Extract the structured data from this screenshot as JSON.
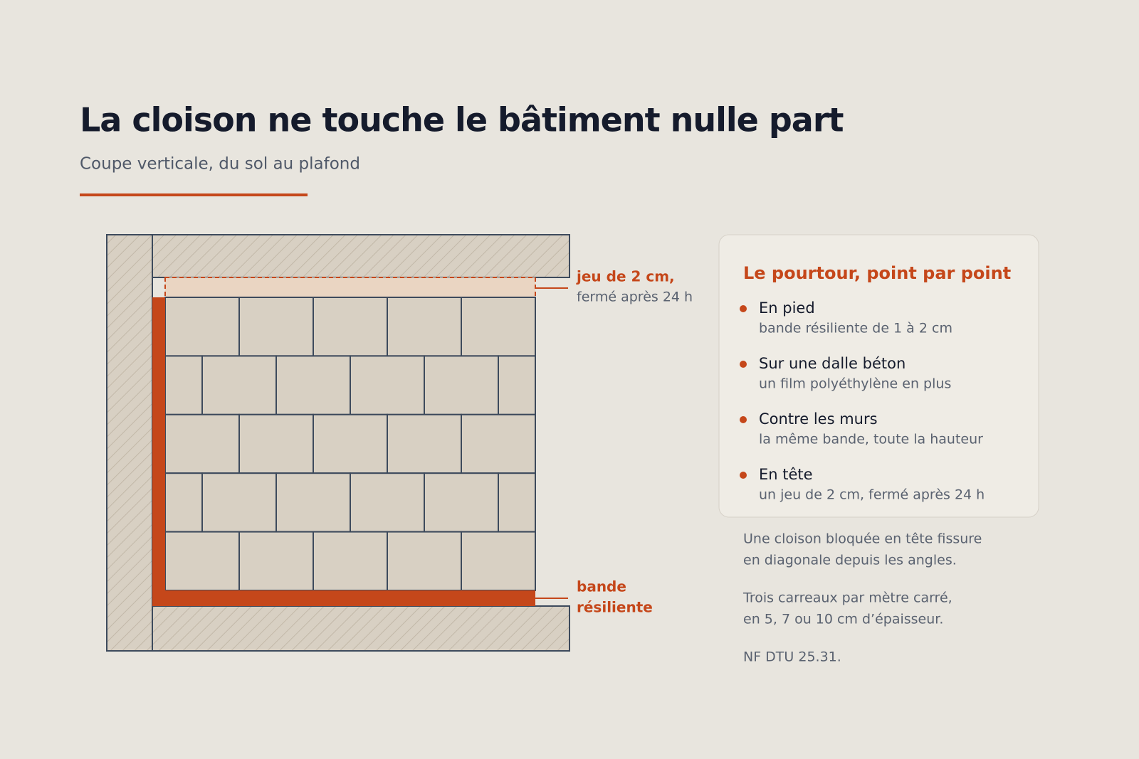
{
  "header": {
    "title": "La cloison ne touche le bâtiment nulle part",
    "subtitle": "Coupe verticale, du sol au plafond"
  },
  "diagram": {
    "gap_label": [
      "jeu de 2 cm,",
      "fermé après 24 h"
    ],
    "band_label": [
      "bande",
      "résiliente"
    ]
  },
  "card": {
    "title": "Le pourtour, point par point",
    "items": [
      {
        "term": "En pied",
        "detail": "bande résiliente de 1 à 2 cm"
      },
      {
        "term": "Sur une dalle béton",
        "detail": "un film polyéthylène en plus"
      },
      {
        "term": "Contre les murs",
        "detail": "la même bande, toute la hauteur"
      },
      {
        "term": "En tête",
        "detail": "un jeu de 2 cm, fermé après 24 h"
      }
    ]
  },
  "notes": [
    [
      "Une cloison bloquée en tête fissure",
      "en diagonale depuis les angles."
    ],
    [
      "Trois carreaux par mètre carré,",
      "en 5, 7 ou 10 cm d’épaisseur."
    ],
    [
      "NF DTU 25.31."
    ]
  ]
}
